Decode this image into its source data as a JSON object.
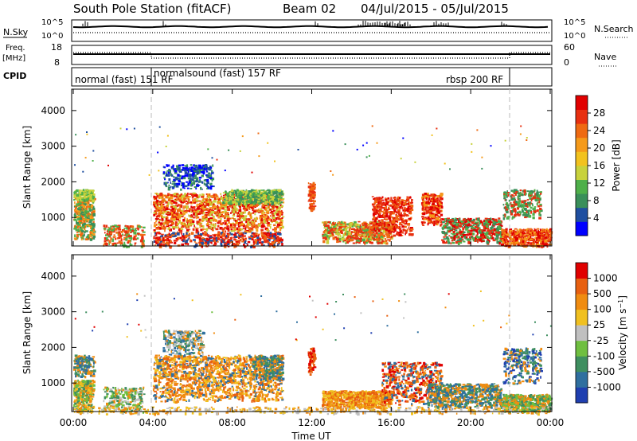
{
  "header": {
    "title": "South Pole Station (fitACF)",
    "beam": "Beam 02",
    "dates": "04/Jul/2015 - 05/Jul/2015"
  },
  "strips": {
    "nsky_label": "N.Sky",
    "nsearch_label": "N.Search",
    "noise_top": "10^5",
    "noise_bottom": "10^0",
    "freq_label": "Freq.",
    "freq_unit": "[MHz]",
    "freq_top": "18",
    "freq_bottom": "8",
    "nave_label": "Nave",
    "nave_top": "60",
    "nave_bottom": "0",
    "cpid_label": "CPID",
    "cpid_modes": [
      {
        "label": "normal (fast) 151 RF",
        "start_hour": 0
      },
      {
        "label": "normalsound (fast) 157 RF",
        "start_hour": 4
      },
      {
        "label": "rbsp 200 RF",
        "start_hour": 22
      }
    ]
  },
  "colors": {
    "power_scale": [
      "#0000ff",
      "#1f4fa0",
      "#3a8f5a",
      "#4fb04a",
      "#c8d23c",
      "#f2c21e",
      "#f59a1a",
      "#ef6a12",
      "#e83010",
      "#e10000"
    ],
    "velocity_scale": [
      "#1f3fb0",
      "#2f6f9f",
      "#3f8f60",
      "#6fbf40",
      "#c0c0c0",
      "#f0c020",
      "#f08c10",
      "#e86010",
      "#e00000"
    ]
  },
  "chart_data": [
    {
      "type": "heatmap",
      "title": "South Pole Station (fitACF)",
      "ylabel": "Slant Range [km]",
      "xlabel": "Time UT",
      "xlim": [
        0,
        24
      ],
      "ylim": [
        200,
        4600
      ],
      "x_ticks": [
        "00:00",
        "04:00",
        "08:00",
        "12:00",
        "16:00",
        "20:00",
        "00:00"
      ],
      "y_ticks": [
        1000,
        2000,
        3000,
        4000
      ],
      "colorbar": {
        "label": "Power [dB]",
        "ticks": [
          "28",
          "24",
          "20",
          "16",
          "12",
          "8",
          "4"
        ],
        "range": [
          0,
          30
        ]
      },
      "mode_change_hours": [
        4,
        22
      ]
    },
    {
      "type": "heatmap",
      "ylabel": "Slant Range [km]",
      "xlabel": "Time UT",
      "xlim": [
        0,
        24
      ],
      "ylim": [
        200,
        4600
      ],
      "x_ticks": [
        "00:00",
        "04:00",
        "08:00",
        "12:00",
        "16:00",
        "20:00",
        "00:00"
      ],
      "y_ticks": [
        1000,
        2000,
        3000,
        4000
      ],
      "colorbar": {
        "label": "Velocity [m s^-1]",
        "ticks": [
          "1000",
          "500",
          "100",
          "25",
          "-25",
          "-100",
          "-500",
          "-1000"
        ]
      },
      "mode_change_hours": [
        4,
        22
      ]
    }
  ]
}
